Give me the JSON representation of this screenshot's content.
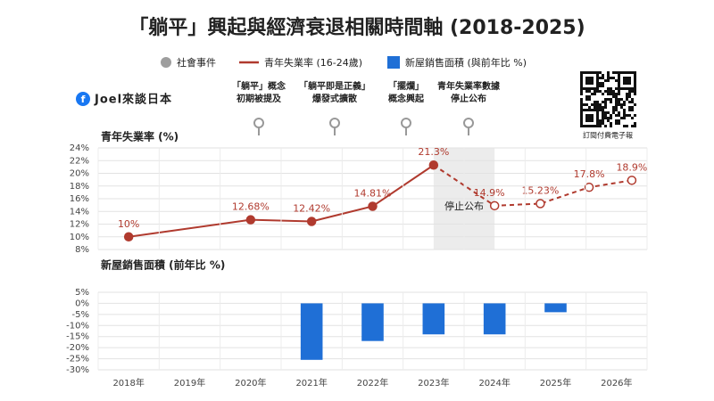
{
  "header": {
    "title": "「躺平」興起與經濟衰退相關時間軸 (2018-2025)",
    "brand": "Joel來談日本",
    "qr_caption": "訂閱付費電子報",
    "events_label": "社會事件"
  },
  "chart_data": [
    {
      "type": "line",
      "y_title": "青年失業率 (%)",
      "xlim": [
        2017.5,
        2026.5
      ],
      "ylim": [
        8,
        24
      ],
      "yticks": [
        {
          "value": 8,
          "label": "8%"
        },
        {
          "value": 10,
          "label": "10%"
        },
        {
          "value": 12,
          "label": "12%"
        },
        {
          "value": 14,
          "label": "14%"
        },
        {
          "value": 16,
          "label": "16%"
        },
        {
          "value": 18,
          "label": "18%"
        },
        {
          "value": 20,
          "label": "20%"
        },
        {
          "value": 22,
          "label": "22%"
        },
        {
          "value": 24,
          "label": "24%"
        }
      ],
      "grid": true,
      "highlight_x": [
        2023,
        2024
      ],
      "annotations": [
        {
          "text": "停止公布"
        }
      ],
      "events": [
        {
          "lines": [
            "「躺平」概念",
            "初期被提及"
          ]
        },
        {
          "lines": [
            "「躺平即是正義」",
            "爆發式擴散"
          ]
        },
        {
          "lines": [
            "「擺爛」",
            "概念興起"
          ]
        },
        {
          "lines": [
            "青年失業率數據",
            "停止公布"
          ]
        }
      ],
      "series": [
        {
          "name": "青年失業率 (16-24歲)",
          "color": "#b03a2e",
          "dashed_from_index": 4,
          "x": [
            2018,
            2020,
            2021,
            2022,
            2023,
            2024,
            2024.75,
            2025.55,
            2026.25
          ],
          "values": [
            10,
            12.68,
            12.42,
            14.81,
            21.3,
            14.9,
            15.23,
            17.8,
            18.9
          ],
          "value_labels": [
            "10%",
            "12.68%",
            "12.42%",
            "14.81%",
            "21.3%",
            "14.9%",
            "15.23%",
            "17.8%",
            "18.9%"
          ]
        }
      ]
    },
    {
      "type": "bar",
      "y_title": "新屋銷售面積 (前年比 %)",
      "categories": [
        "2018年",
        "2019年",
        "2020年",
        "2021年",
        "2022年",
        "2023年",
        "2024年",
        "2025年",
        "2026年"
      ],
      "ylim": [
        -30,
        5
      ],
      "yticks": [
        {
          "value": 5,
          "label": "5%"
        },
        {
          "value": 0,
          "label": "0%"
        },
        {
          "value": -5,
          "label": "-5%"
        },
        {
          "value": -10,
          "label": "-10%"
        },
        {
          "value": -15,
          "label": "-15%"
        },
        {
          "value": -20,
          "label": "-20%"
        },
        {
          "value": -25,
          "label": "-25%"
        },
        {
          "value": -30,
          "label": "-30%"
        }
      ],
      "grid": true,
      "series": [
        {
          "name": "新屋銷售面積 (與前年比 %)",
          "color": "#1f6fd6",
          "values": [
            null,
            null,
            null,
            -25.5,
            -17,
            -14,
            -14,
            -4,
            null
          ]
        }
      ]
    }
  ]
}
